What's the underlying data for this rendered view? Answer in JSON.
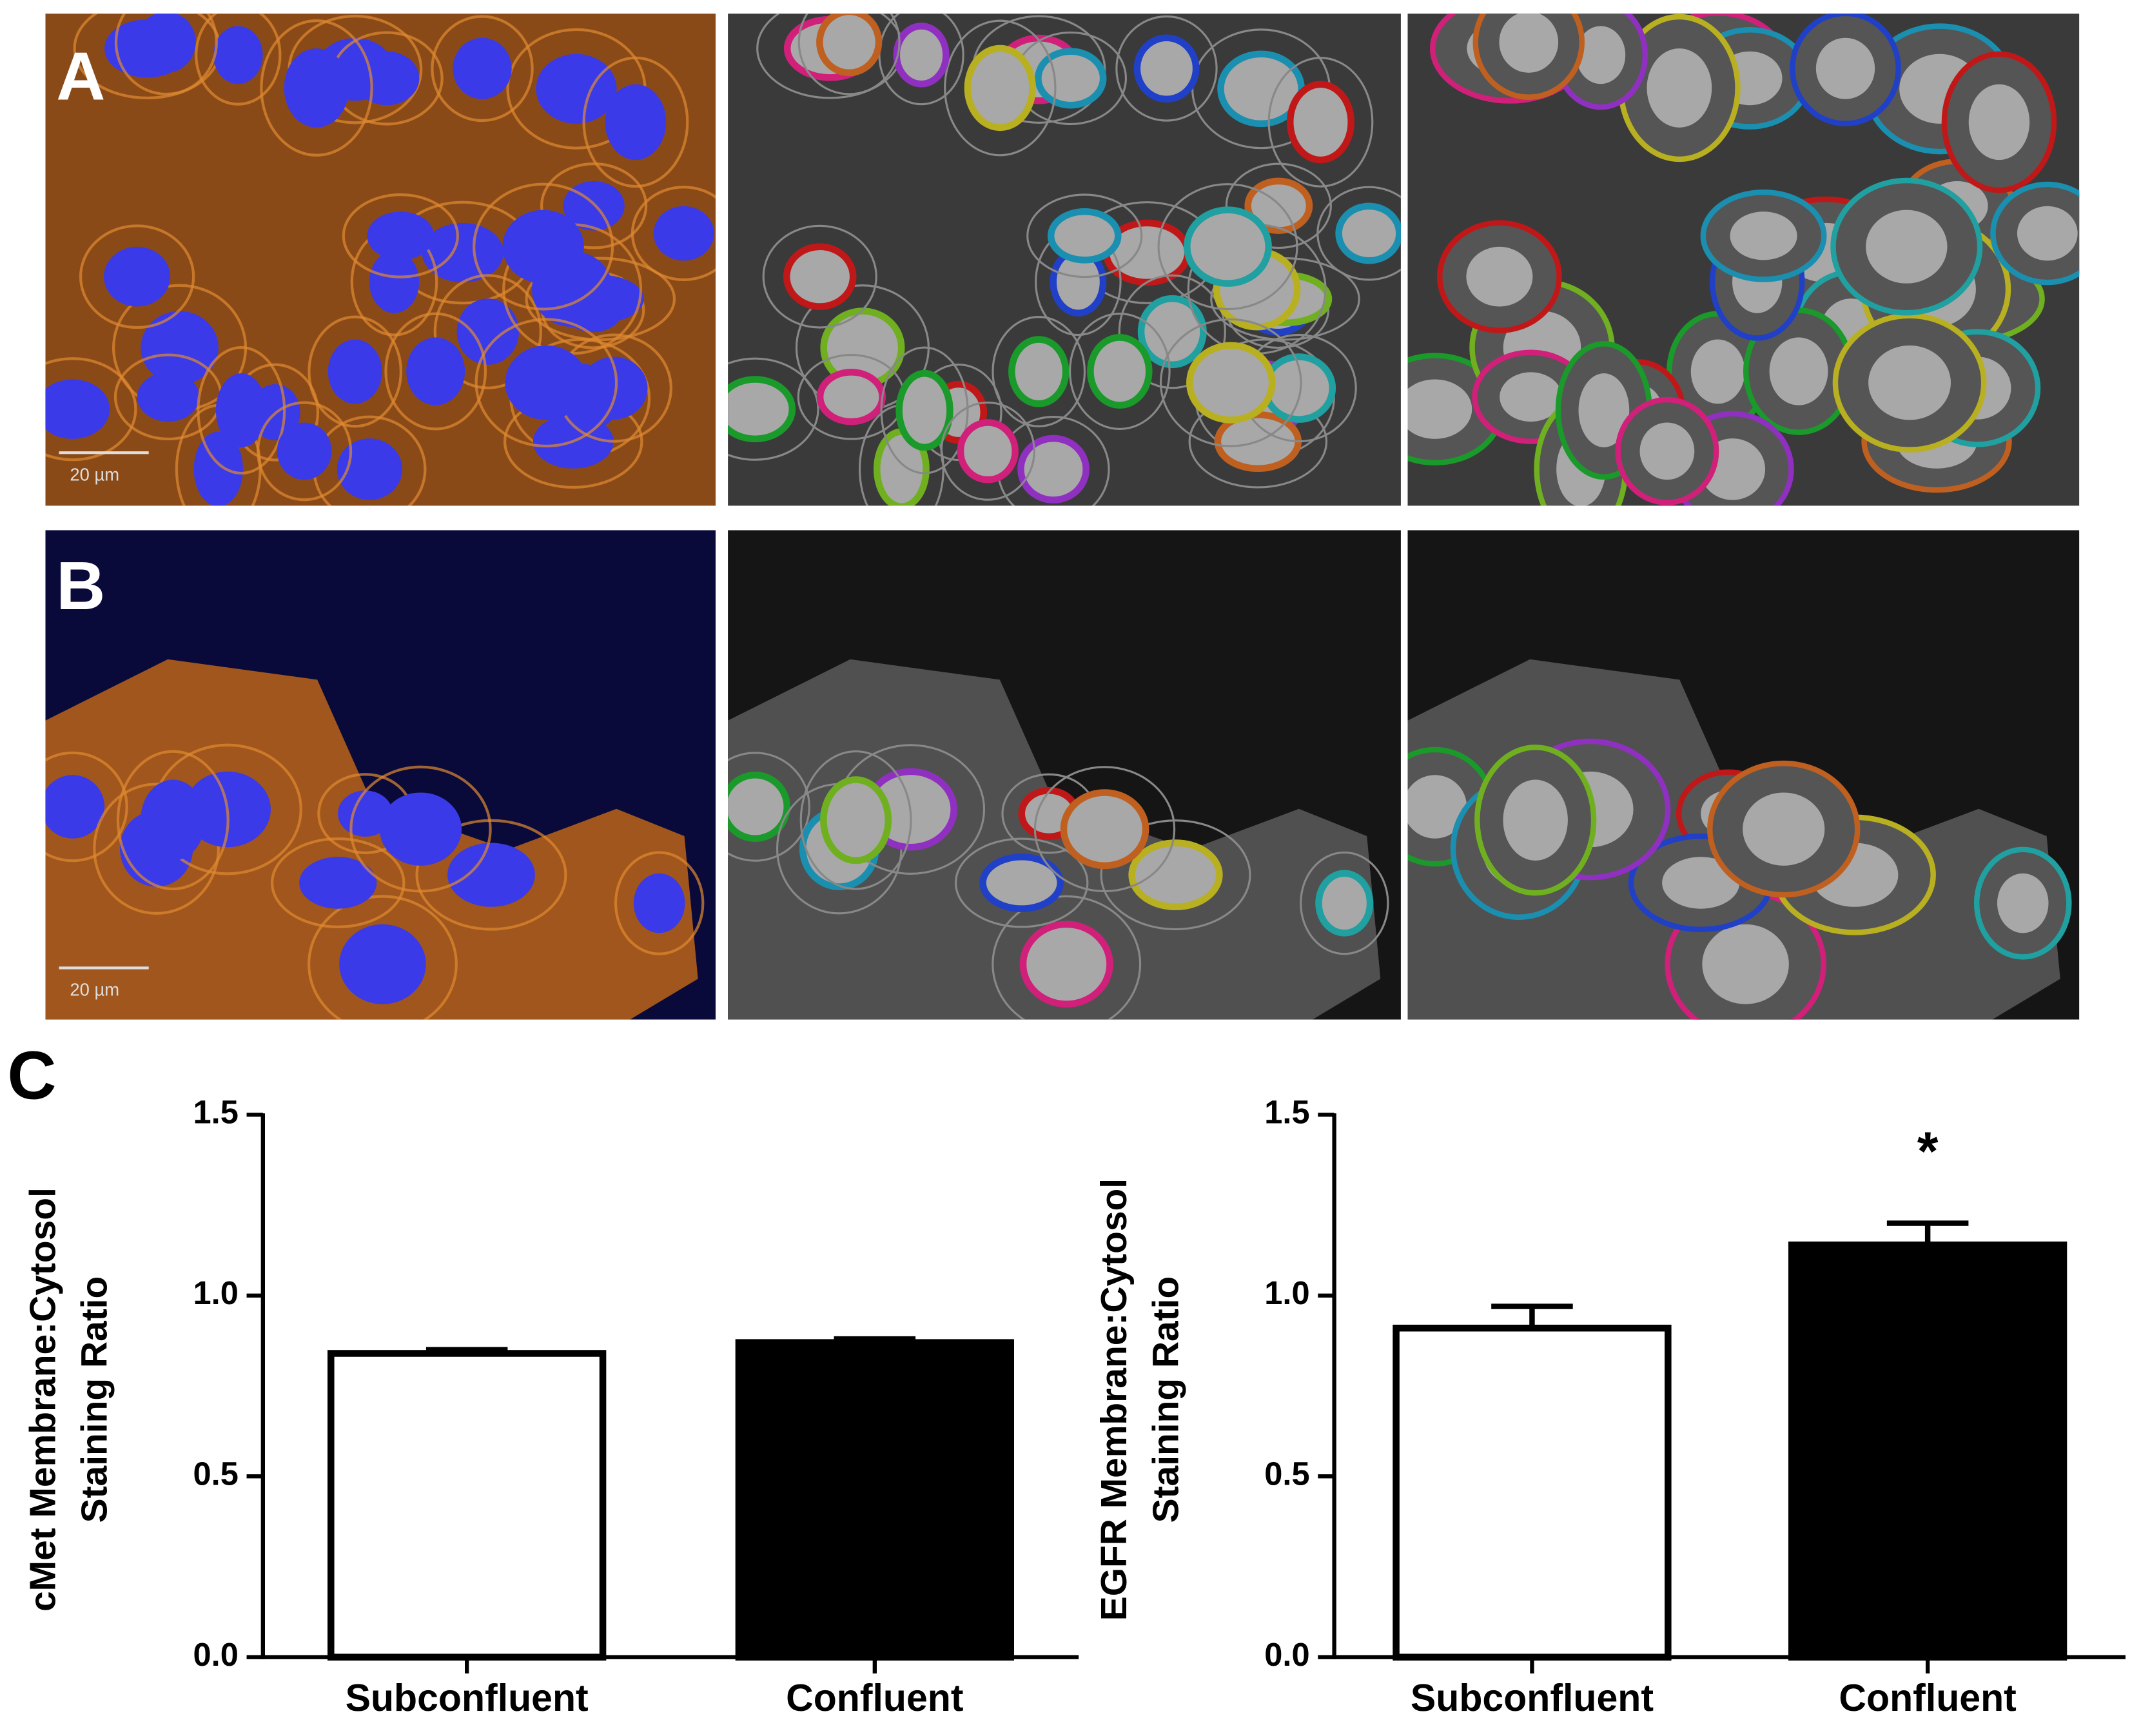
{
  "panels": {
    "labels": [
      "A",
      "B",
      "C"
    ],
    "scale_bars": [
      "20 µm",
      "20 µm"
    ]
  },
  "chart_data": [
    {
      "type": "bar",
      "ylabel": [
        "cMet Membrane:Cytosol",
        "Staining  Ratio"
      ],
      "categories": [
        "Subconfluent",
        "Confluent"
      ],
      "values": [
        0.84,
        0.87
      ],
      "errors": [
        0.01,
        0.01
      ],
      "colors": [
        "#ffffff",
        "#000000"
      ],
      "ylim": [
        0,
        1.5
      ],
      "yticks": [
        {
          "value": 0,
          "label": "0.0"
        },
        0.5,
        {
          "value": 1,
          "label": "1.0"
        },
        1.5
      ]
    },
    {
      "type": "bar",
      "ylabel": [
        "EGFR Membrane:Cytosol",
        "Staining Ratio"
      ],
      "categories": [
        "Subconfluent",
        "Confluent"
      ],
      "values": [
        0.91,
        1.14
      ],
      "errors": [
        0.06,
        0.06
      ],
      "colors": [
        "#ffffff",
        "#000000"
      ],
      "ylim": [
        0,
        1.5
      ],
      "yticks": [
        {
          "value": 0,
          "label": "0.0"
        },
        0.5,
        {
          "value": 1,
          "label": "1.0"
        },
        1.5
      ],
      "annotation": "*"
    }
  ]
}
